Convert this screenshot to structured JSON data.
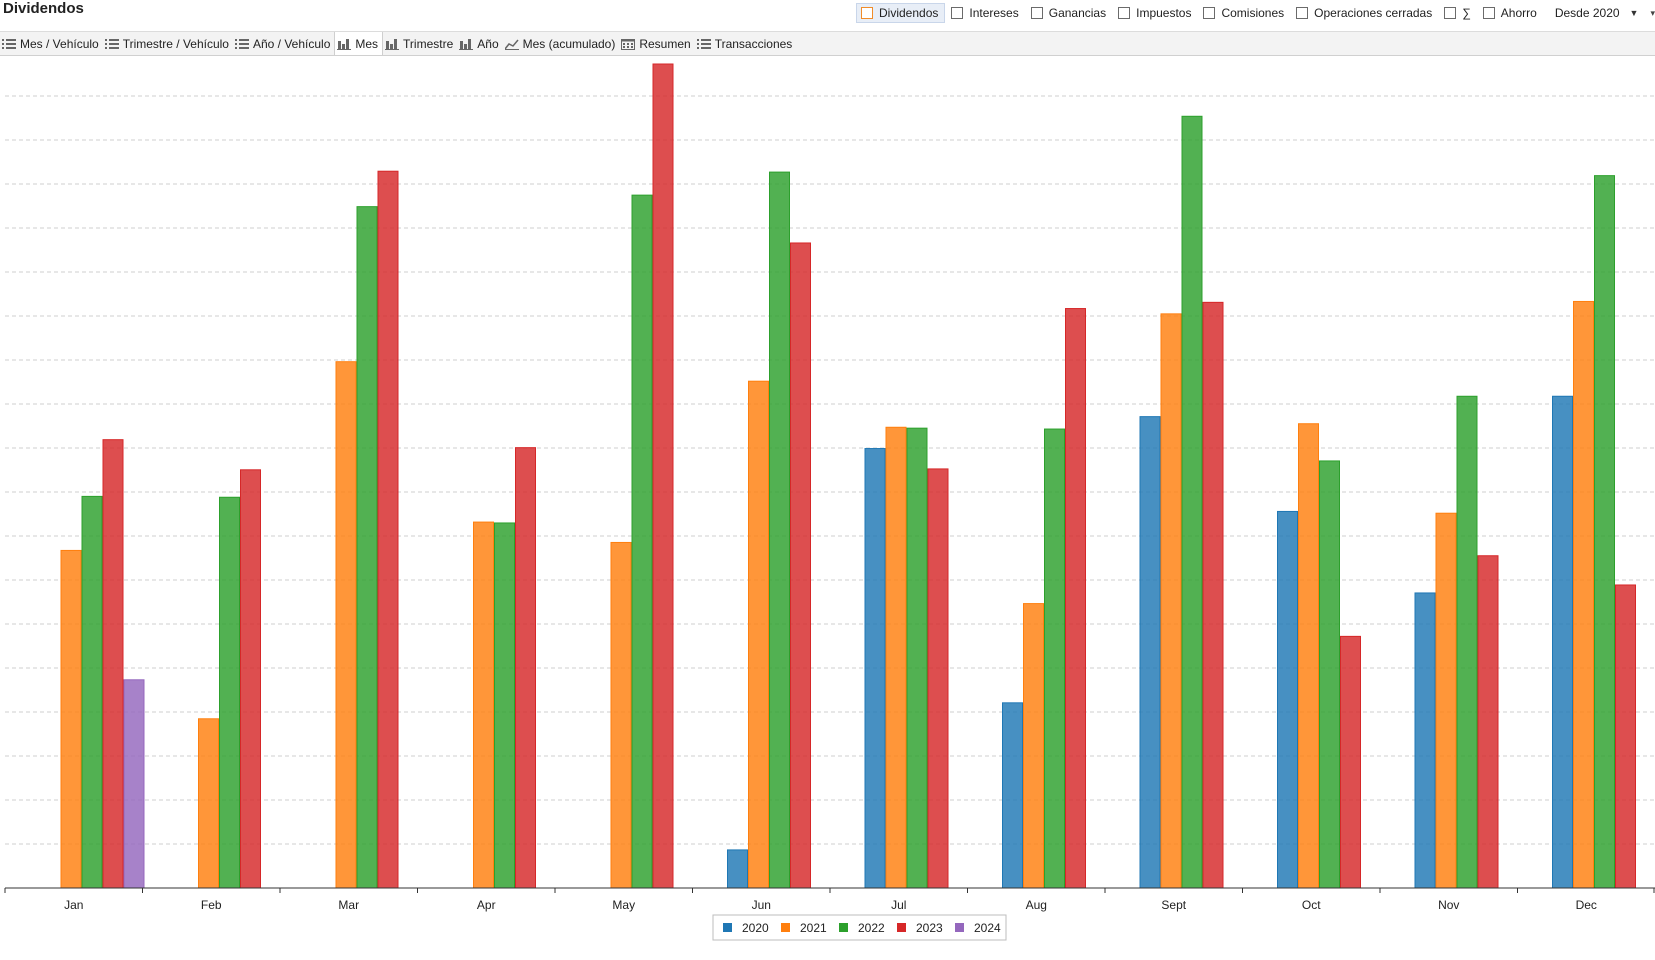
{
  "app": {
    "title": "Dividendos"
  },
  "filters": [
    {
      "label": "Dividendos",
      "checked": true
    },
    {
      "label": "Intereses",
      "checked": false
    },
    {
      "label": "Ganancias",
      "checked": false
    },
    {
      "label": "Impuestos",
      "checked": false
    },
    {
      "label": "Comisiones",
      "checked": false
    },
    {
      "label": "Operaciones cerradas",
      "checked": false
    },
    {
      "label": "∑",
      "checked": false
    },
    {
      "label": "Ahorro",
      "checked": false
    }
  ],
  "period": {
    "selected": "Desde 2020"
  },
  "tabs": [
    {
      "label": "Mes / Vehículo",
      "icon": "list-icon"
    },
    {
      "label": "Trimestre / Vehículo",
      "icon": "list-icon"
    },
    {
      "label": "Año / Vehículo",
      "icon": "list-icon"
    },
    {
      "label": "Mes",
      "icon": "bar-chart-icon",
      "active": true
    },
    {
      "label": "Trimestre",
      "icon": "bar-chart-icon"
    },
    {
      "label": "Año",
      "icon": "bar-chart-icon"
    },
    {
      "label": "Mes (acumulado)",
      "icon": "line-chart-icon"
    },
    {
      "label": "Resumen",
      "icon": "calendar-icon"
    },
    {
      "label": "Transacciones",
      "icon": "list-icon"
    }
  ],
  "chart_data": {
    "type": "bar",
    "title": "",
    "xlabel": "",
    "ylabel": "",
    "ylim": [
      0,
      93
    ],
    "grid": true,
    "legend_position": "bottom-center",
    "categories": [
      "Jan",
      "Feb",
      "Mar",
      "Apr",
      "May",
      "Jun",
      "Jul",
      "Aug",
      "Sept",
      "Oct",
      "Nov",
      "Dec"
    ],
    "series": [
      {
        "name": "2020",
        "color": "#1f77b4",
        "values": [
          0,
          0,
          0,
          0,
          0,
          4.3,
          49.6,
          20.9,
          53.2,
          42.5,
          33.3,
          55.5
        ]
      },
      {
        "name": "2021",
        "color": "#ff7f0e",
        "values": [
          38.1,
          19.1,
          59.4,
          41.3,
          39.0,
          57.2,
          52.0,
          32.1,
          64.8,
          52.4,
          42.3,
          66.2
        ]
      },
      {
        "name": "2022",
        "color": "#2ca02c",
        "values": [
          44.2,
          44.1,
          76.9,
          41.2,
          78.2,
          80.8,
          51.9,
          51.8,
          87.1,
          48.2,
          55.5,
          80.4
        ]
      },
      {
        "name": "2023",
        "color": "#d62728",
        "values": [
          50.6,
          47.2,
          80.9,
          49.7,
          93.0,
          72.8,
          47.3,
          65.4,
          66.1,
          28.4,
          37.5,
          34.2
        ]
      },
      {
        "name": "2024",
        "color": "#9467bd",
        "values": [
          23.5,
          0,
          0,
          0,
          0,
          0,
          0,
          0,
          0,
          0,
          0,
          0
        ]
      }
    ]
  }
}
